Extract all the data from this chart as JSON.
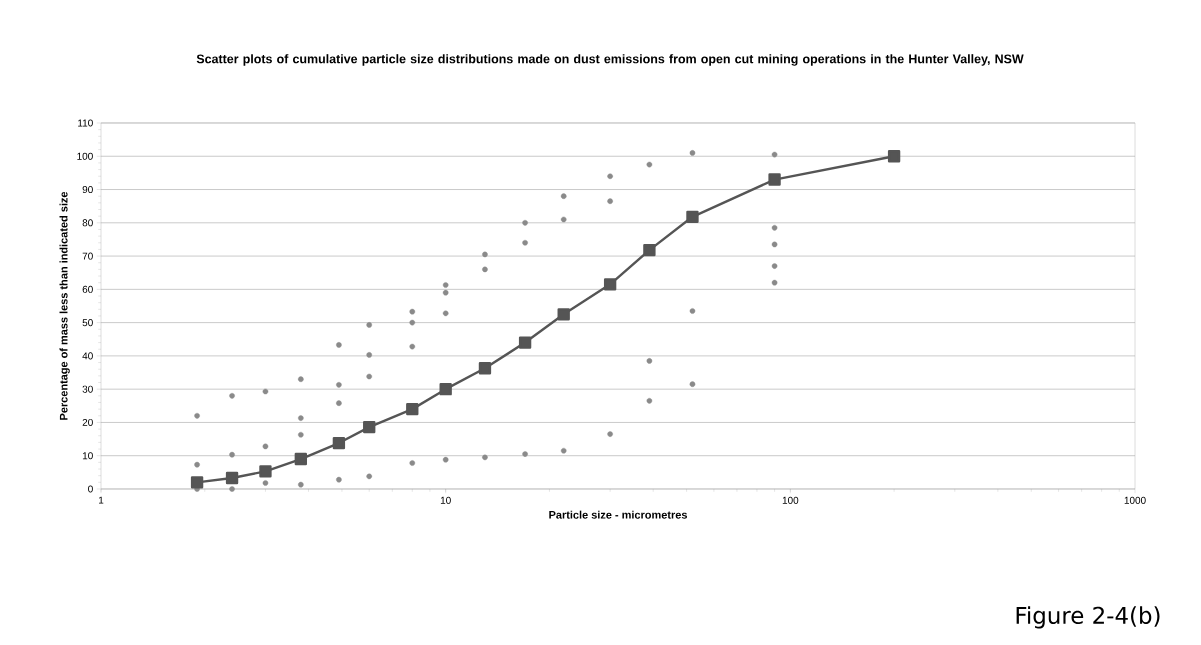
{
  "chart_data": {
    "type": "scatter",
    "title": "Scatter plots of cumulative particle size distributions made on dust emissions from open cut mining operations in the Hunter Valley, NSW",
    "xlabel": "Particle size - micrometres",
    "ylabel": "Percentage of mass less than indicated size",
    "log": "x",
    "xlim": [
      1,
      1000
    ],
    "xticks": [
      1,
      10,
      100,
      1000
    ],
    "ylim": [
      0,
      110
    ],
    "yticks": [
      0,
      10,
      20,
      30,
      40,
      50,
      60,
      70,
      80,
      90,
      100,
      110
    ],
    "grid": "y",
    "annotations": [
      "Figure 2-4(b)"
    ],
    "series": [
      {
        "color": "#8a8a8a",
        "marker": "circle",
        "x": [
          1.9,
          1.9,
          1.9,
          2.4,
          2.4,
          2.4,
          3,
          3,
          3,
          3.8,
          3.8,
          3.8,
          3.8,
          4.9,
          4.9,
          4.9,
          4.9,
          6,
          6,
          6,
          6,
          8,
          8,
          8,
          8,
          10,
          10,
          10,
          10,
          13,
          13,
          13,
          17,
          17,
          17,
          22,
          22,
          22,
          30,
          30,
          30,
          39,
          39,
          39,
          52,
          52,
          52,
          90,
          90,
          90,
          90,
          90
        ],
        "values": [
          22,
          7.3,
          0,
          28,
          10.3,
          0,
          29.3,
          12.8,
          1.8,
          33,
          21.3,
          16.3,
          1.3,
          43.3,
          31.3,
          25.8,
          2.8,
          49.3,
          40.3,
          33.8,
          3.8,
          53.3,
          50,
          42.8,
          7.8,
          61.3,
          59,
          52.8,
          8.8,
          70.5,
          66,
          9.5,
          80,
          74,
          10.5,
          88,
          81,
          11.5,
          94,
          86.5,
          16.5,
          97.5,
          38.5,
          26.5,
          101,
          53.5,
          31.5,
          100.5,
          78.5,
          73.5,
          67,
          62
        ]
      },
      {
        "type": "line",
        "color": "#555555",
        "marker": "square",
        "line_style": "solid",
        "x": [
          1.9,
          2.4,
          3,
          3.8,
          4.9,
          6,
          8,
          10,
          13,
          17,
          22,
          30,
          39,
          52,
          90,
          200
        ],
        "values": [
          2,
          3.3,
          5.3,
          9,
          13.8,
          18.6,
          24,
          30,
          36.3,
          44,
          52.5,
          61.5,
          71.8,
          81.8,
          93,
          100
        ]
      }
    ]
  }
}
